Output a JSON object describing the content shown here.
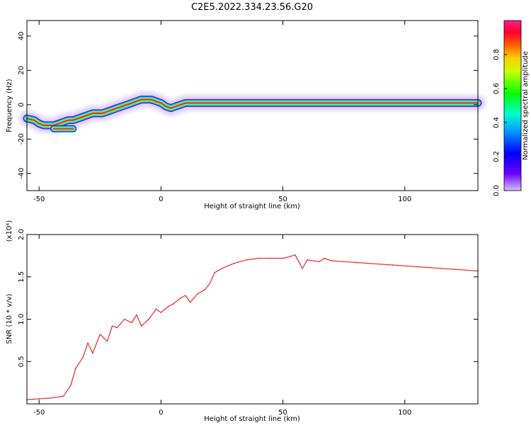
{
  "title": "C2E5.2022.334.23.56.G20",
  "colors": {
    "snr_line": "#e82a2a",
    "ridge_core": "#e8293a",
    "ridge_mid": "#7fff3a",
    "ridge_outer": "#17dcd3",
    "ridge_halo": "#3a1cff",
    "ridge_haze": "#c9a8ff"
  },
  "chart_data": [
    {
      "type": "heatmap",
      "xlabel": "Height of straight line (km)",
      "ylabel": "Frequency (Hz)",
      "xlim": [
        -55,
        130
      ],
      "ylim": [
        -50,
        49
      ],
      "xticks": [
        "-50",
        "0",
        "50",
        "100"
      ],
      "xtick_values": [
        -50,
        0,
        50,
        100
      ],
      "yticks": [
        "-40",
        "-20",
        "0",
        "20",
        "40"
      ],
      "ytick_values": [
        -40,
        -20,
        0,
        20,
        40
      ],
      "colorbar": {
        "label": "Normalized spectral amplitude",
        "range": [
          0,
          1
        ],
        "ticks": [
          "0.0",
          "0.2",
          "0.4",
          "0.6",
          "0.8"
        ],
        "tick_values": [
          0.0,
          0.2,
          0.4,
          0.6,
          0.8
        ],
        "colormap": "hsv_reversed"
      },
      "ridge": {
        "x": [
          -55,
          -52,
          -50,
          -48,
          -46,
          -44,
          -42,
          -40,
          -38,
          -36,
          -34,
          -32,
          -30,
          -28,
          -26,
          -24,
          -22,
          -20,
          -18,
          -16,
          -14,
          -12,
          -10,
          -8,
          -6,
          -4,
          -2,
          0,
          2,
          4,
          6,
          8,
          10,
          15,
          20,
          30,
          40,
          50,
          60,
          70,
          80,
          90,
          100,
          110,
          120,
          130
        ],
        "y": [
          -8,
          -9,
          -11,
          -12,
          -12,
          -12,
          -11,
          -10,
          -9,
          -9,
          -8,
          -7,
          -6,
          -5,
          -5,
          -5,
          -4,
          -3,
          -2,
          -1,
          0,
          1,
          2,
          3,
          3,
          3,
          2,
          1,
          -1,
          -2,
          -1,
          0,
          1,
          1,
          1,
          1,
          1,
          1,
          1,
          1,
          1,
          1,
          1,
          1,
          1,
          1
        ]
      },
      "secondary_track": {
        "x": [
          -44,
          -42,
          -40,
          -38,
          -36
        ],
        "y": [
          -14,
          -14,
          -14,
          -14,
          -14
        ]
      }
    },
    {
      "type": "line",
      "xlabel": "Height of straight line (km)",
      "ylabel": "SNR (10 * v/v)",
      "y_multiplier": "(x10⁴)",
      "xlim": [
        -55,
        130
      ],
      "ylim": [
        0,
        2.0
      ],
      "xticks": [
        "-50",
        "0",
        "50",
        "100"
      ],
      "xtick_values": [
        -50,
        0,
        50,
        100
      ],
      "yticks": [
        "0.5",
        "1.0",
        "1.5",
        "2.0"
      ],
      "ytick_values": [
        0.5,
        1.0,
        1.5,
        2.0
      ],
      "series": [
        {
          "x": [
            -55,
            -50,
            -45,
            -40,
            -37,
            -35,
            -32,
            -30,
            -28,
            -25,
            -22,
            -20,
            -18,
            -15,
            -12,
            -10,
            -8,
            -5,
            -2,
            0,
            3,
            5,
            8,
            10,
            12,
            15,
            18,
            20,
            22,
            25,
            30,
            35,
            40,
            45,
            50,
            53,
            55,
            58,
            60,
            65,
            67,
            70,
            75,
            80,
            85,
            90,
            95,
            100,
            105,
            110,
            115,
            120,
            125,
            130
          ],
          "y": [
            0.05,
            0.06,
            0.07,
            0.09,
            0.22,
            0.42,
            0.55,
            0.72,
            0.6,
            0.82,
            0.74,
            0.92,
            0.9,
            1.0,
            0.96,
            1.05,
            0.92,
            1.0,
            1.12,
            1.08,
            1.15,
            1.18,
            1.25,
            1.28,
            1.2,
            1.3,
            1.35,
            1.42,
            1.55,
            1.6,
            1.66,
            1.7,
            1.72,
            1.72,
            1.72,
            1.74,
            1.76,
            1.6,
            1.7,
            1.68,
            1.72,
            1.69,
            1.68,
            1.67,
            1.66,
            1.65,
            1.64,
            1.63,
            1.62,
            1.61,
            1.6,
            1.59,
            1.58,
            1.57
          ]
        }
      ]
    }
  ]
}
